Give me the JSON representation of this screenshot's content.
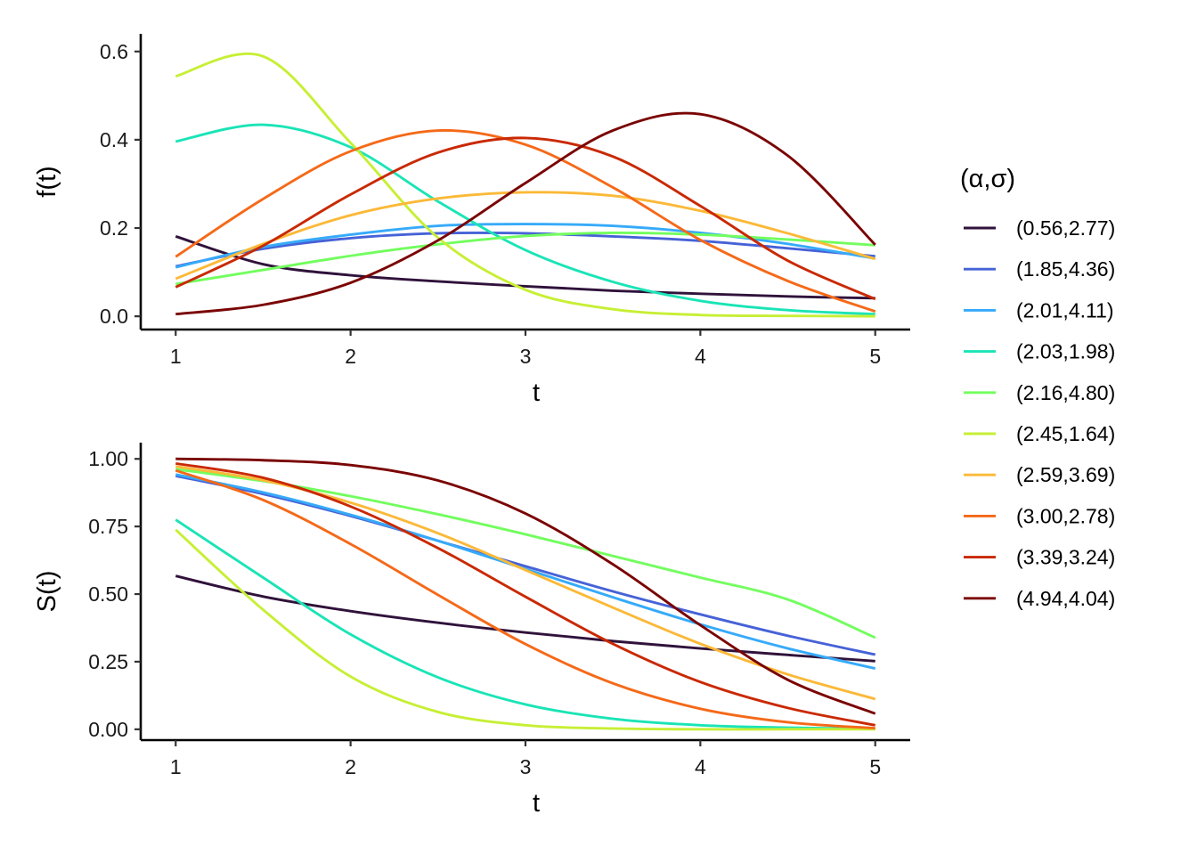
{
  "chart_data": [
    {
      "type": "line",
      "panel": "density",
      "xlabel": "t",
      "ylabel": "f(t)",
      "xlim": [
        0.8,
        5.2
      ],
      "ylim": [
        -0.03,
        0.64
      ],
      "x_ticks": [
        1,
        2,
        3,
        4,
        5
      ],
      "y_ticks": [
        0.0,
        0.2,
        0.4,
        0.6
      ],
      "x_tick_labels": [
        "1",
        "2",
        "3",
        "4",
        "5"
      ],
      "y_tick_labels": [
        "0.0",
        "0.2",
        "0.4",
        "0.6"
      ],
      "grid": false,
      "x": [
        1.0,
        1.5,
        2.0,
        2.5,
        3.0,
        3.5,
        4.0,
        4.5,
        5.0
      ],
      "series": [
        {
          "name": "(0.56,2.77)",
          "color": "#30123b",
          "values": [
            0.181,
            0.118,
            0.093,
            0.079,
            0.068,
            0.058,
            0.051,
            0.045,
            0.041
          ]
        },
        {
          "name": "(1.85,4.36)",
          "color": "#4662d7",
          "values": [
            0.113,
            0.153,
            0.177,
            0.188,
            0.188,
            0.181,
            0.171,
            0.154,
            0.136
          ]
        },
        {
          "name": "(2.01,4.11)",
          "color": "#36aaf9",
          "values": [
            0.111,
            0.157,
            0.185,
            0.205,
            0.209,
            0.205,
            0.189,
            0.164,
            0.131
          ]
        },
        {
          "name": "(2.03,1.98)",
          "color": "#1ae4b6",
          "values": [
            0.396,
            0.434,
            0.383,
            0.26,
            0.15,
            0.078,
            0.035,
            0.014,
            0.005
          ]
        },
        {
          "name": "(2.16,4.80)",
          "color": "#72fe5e",
          "values": [
            0.073,
            0.105,
            0.137,
            0.163,
            0.182,
            0.189,
            0.185,
            0.174,
            0.161
          ]
        },
        {
          "name": "(2.45,1.64)",
          "color": "#c7ef34",
          "values": [
            0.544,
            0.589,
            0.393,
            0.178,
            0.06,
            0.016,
            0.003,
            0.001,
            0.0
          ]
        },
        {
          "name": "(2.59,3.69)",
          "color": "#fbb938",
          "values": [
            0.085,
            0.164,
            0.229,
            0.267,
            0.281,
            0.273,
            0.239,
            0.188,
            0.13
          ]
        },
        {
          "name": "(3.00,2.78)",
          "color": "#f56918",
          "values": [
            0.135,
            0.266,
            0.374,
            0.421,
            0.389,
            0.292,
            0.173,
            0.08,
            0.011
          ]
        },
        {
          "name": "(3.39,3.24)",
          "color": "#c92903",
          "values": [
            0.066,
            0.16,
            0.276,
            0.371,
            0.404,
            0.362,
            0.25,
            0.126,
            0.039
          ]
        },
        {
          "name": "(4.94,4.04)",
          "color": "#7a0403",
          "values": [
            0.005,
            0.026,
            0.076,
            0.172,
            0.302,
            0.421,
            0.458,
            0.364,
            0.162
          ]
        }
      ]
    },
    {
      "type": "line",
      "panel": "survival",
      "xlabel": "t",
      "ylabel": "S(t)",
      "xlim": [
        0.8,
        5.2
      ],
      "ylim": [
        -0.04,
        1.06
      ],
      "x_ticks": [
        1,
        2,
        3,
        4,
        5
      ],
      "y_ticks": [
        0.0,
        0.25,
        0.5,
        0.75,
        1.0
      ],
      "x_tick_labels": [
        "1",
        "2",
        "3",
        "4",
        "5"
      ],
      "y_tick_labels": [
        "0.00",
        "0.25",
        "0.50",
        "0.75",
        "1.00"
      ],
      "grid": false,
      "x": [
        1.0,
        1.5,
        2.0,
        2.5,
        3.0,
        3.5,
        4.0,
        4.5,
        5.0
      ],
      "series": [
        {
          "name": "(0.56,2.77)",
          "color": "#30123b",
          "values": [
            0.567,
            0.491,
            0.437,
            0.394,
            0.358,
            0.326,
            0.299,
            0.275,
            0.252
          ]
        },
        {
          "name": "(1.85,4.36)",
          "color": "#4662d7",
          "values": [
            0.937,
            0.87,
            0.789,
            0.697,
            0.603,
            0.51,
            0.425,
            0.346,
            0.276
          ]
        },
        {
          "name": "(2.01,4.11)",
          "color": "#36aaf9",
          "values": [
            0.942,
            0.876,
            0.793,
            0.697,
            0.593,
            0.488,
            0.388,
            0.299,
            0.225
          ]
        },
        {
          "name": "(2.03,1.98)",
          "color": "#1ae4b6",
          "values": [
            0.775,
            0.561,
            0.351,
            0.192,
            0.092,
            0.039,
            0.015,
            0.006,
            0.002
          ]
        },
        {
          "name": "(2.16,4.80)",
          "color": "#72fe5e",
          "values": [
            0.962,
            0.918,
            0.862,
            0.795,
            0.721,
            0.641,
            0.561,
            0.48,
            0.339
          ]
        },
        {
          "name": "(2.45,1.64)",
          "color": "#c7ef34",
          "values": [
            0.738,
            0.442,
            0.195,
            0.064,
            0.015,
            0.003,
            0.0,
            0.0,
            0.0
          ]
        },
        {
          "name": "(2.59,3.69)",
          "color": "#fbb938",
          "values": [
            0.972,
            0.921,
            0.838,
            0.725,
            0.589,
            0.45,
            0.316,
            0.203,
            0.112
          ]
        },
        {
          "name": "(3.00,2.78)",
          "color": "#f56918",
          "values": [
            0.957,
            0.848,
            0.685,
            0.497,
            0.315,
            0.17,
            0.076,
            0.026,
            0.004
          ]
        },
        {
          "name": "(3.39,3.24)",
          "color": "#c92903",
          "values": [
            0.983,
            0.93,
            0.824,
            0.67,
            0.49,
            0.316,
            0.175,
            0.079,
            0.015
          ]
        },
        {
          "name": "(4.94,4.04)",
          "color": "#7a0403",
          "values": [
            1.0,
            0.995,
            0.977,
            0.92,
            0.798,
            0.61,
            0.385,
            0.183,
            0.058
          ]
        }
      ]
    }
  ],
  "legend": {
    "title": "(α,σ)",
    "placement": "right",
    "items": [
      {
        "label": "(0.56,2.77)",
        "color": "#30123b"
      },
      {
        "label": "(1.85,4.36)",
        "color": "#4662d7"
      },
      {
        "label": "(2.01,4.11)",
        "color": "#36aaf9"
      },
      {
        "label": "(2.03,1.98)",
        "color": "#1ae4b6"
      },
      {
        "label": "(2.16,4.80)",
        "color": "#72fe5e"
      },
      {
        "label": "(2.45,1.64)",
        "color": "#c7ef34"
      },
      {
        "label": "(2.59,3.69)",
        "color": "#fbb938"
      },
      {
        "label": "(3.00,2.78)",
        "color": "#f56918"
      },
      {
        "label": "(3.39,3.24)",
        "color": "#c92903"
      },
      {
        "label": "(4.94,4.04)",
        "color": "#7a0403"
      }
    ]
  }
}
